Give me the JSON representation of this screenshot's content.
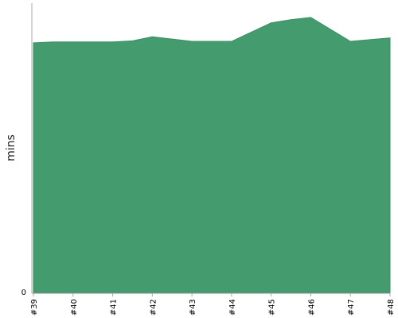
{
  "chart_data": {
    "type": "area",
    "ylabel": "mins",
    "xlabel": "",
    "title": "",
    "x": [
      "#39",
      "#39.5",
      "#40",
      "#41",
      "#41.5",
      "#42",
      "#43",
      "#44",
      "#45",
      "#45.5",
      "#46",
      "#47",
      "#48"
    ],
    "categories": [
      "#39",
      "#40",
      "#41",
      "#42",
      "#43",
      "#44",
      "#45",
      "#46",
      "#47",
      "#48"
    ],
    "values": [
      86.3,
      86.6,
      86.6,
      86.6,
      87.0,
      88.4,
      86.8,
      86.8,
      93.2,
      94.3,
      95.1,
      86.8,
      88.0
    ],
    "ylim": [
      0,
      100
    ],
    "yticks": [
      "0"
    ],
    "grid": false,
    "colors": {
      "area_fill": "#449b6d",
      "area_stroke": "#3a8f62",
      "axis": "#aaaaaa"
    }
  }
}
